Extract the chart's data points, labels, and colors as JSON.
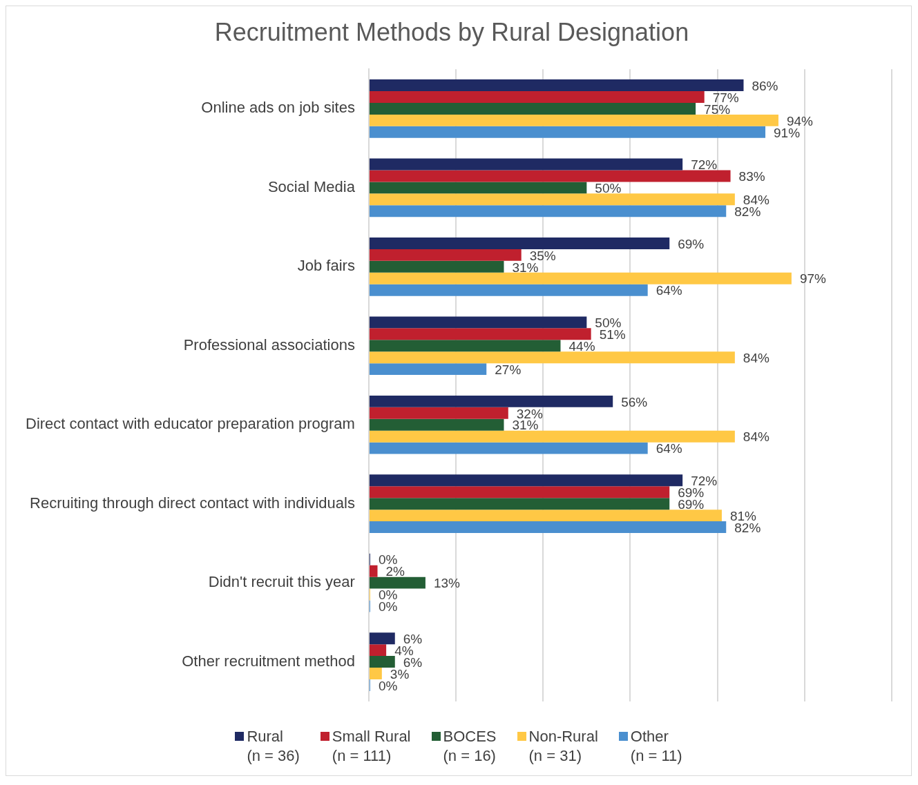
{
  "chart_data": {
    "type": "bar",
    "orientation": "horizontal",
    "title": "Recruitment Methods by Rural Designation",
    "categories": [
      "Online ads on job sites",
      "Social Media",
      "Job fairs",
      "Professional associations",
      "Direct contact with educator preparation program",
      "Recruiting through direct contact with individuals",
      "Didn't recruit this year",
      "Other recruitment method"
    ],
    "series": [
      {
        "name": "Rural\n(n = 36)",
        "color": "#1f2a63",
        "values": [
          86,
          72,
          69,
          50,
          56,
          72,
          0,
          6
        ],
        "value_labels": [
          "86%",
          "72%",
          "69%",
          "50%",
          "56%",
          "72%",
          "0%",
          "6%"
        ]
      },
      {
        "name": "Small Rural\n(n = 111)",
        "color": "#c0202e",
        "values": [
          77,
          83,
          35,
          51,
          32,
          69,
          2,
          4
        ],
        "value_labels": [
          "77%",
          "83%",
          "35%",
          "51%",
          "32%",
          "69%",
          "2%",
          "4%"
        ]
      },
      {
        "name": "BOCES\n(n = 16)",
        "color": "#235e35",
        "values": [
          75,
          50,
          31,
          44,
          31,
          69,
          13,
          6
        ],
        "value_labels": [
          "75%",
          "50%",
          "31%",
          "44%",
          "31%",
          "69%",
          "13%",
          "6%"
        ]
      },
      {
        "name": "Non-Rural\n(n = 31)",
        "color": "#ffc845",
        "values": [
          94,
          84,
          97,
          84,
          84,
          81,
          0,
          3
        ],
        "value_labels": [
          "94%",
          "84%",
          "97%",
          "84%",
          "84%",
          "81%",
          "0%",
          "3%"
        ]
      },
      {
        "name": "Other\n(n = 11)",
        "color": "#4a8fcf",
        "values": [
          91,
          82,
          64,
          27,
          64,
          82,
          0,
          0
        ],
        "value_labels": [
          "91%",
          "82%",
          "64%",
          "27%",
          "64%",
          "82%",
          "0%",
          "0%"
        ]
      }
    ],
    "xlim": [
      0,
      120
    ],
    "xticks": [
      {
        "value": 0,
        "label": null
      },
      {
        "value": 20,
        "label": null
      },
      {
        "value": 40,
        "label": null
      },
      {
        "value": 60,
        "label": null
      },
      {
        "value": 80,
        "label": null
      },
      {
        "value": 100,
        "label": null
      },
      {
        "value": 120,
        "label": null
      }
    ],
    "tick_labels": "y",
    "grid": "x",
    "legend": "bottom"
  }
}
